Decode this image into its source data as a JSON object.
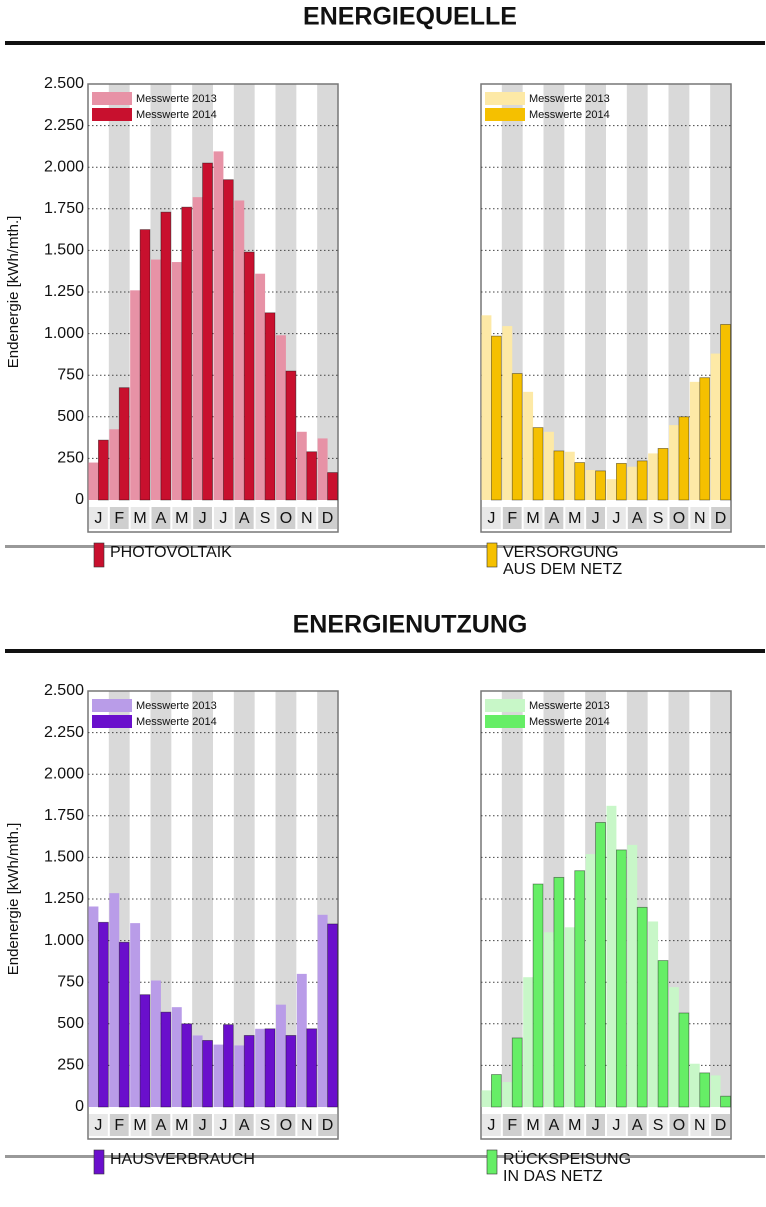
{
  "sections": [
    {
      "title": "ENERGIEQUELLE"
    },
    {
      "title": "ENERGIENUTZUNG"
    }
  ],
  "chart_data": [
    {
      "type": "bar",
      "ylabel": "Endenergie [kWh/mth.]",
      "caption": [
        "PHOTOVOLTAIK"
      ],
      "caption_color": "#c8102e",
      "categories": [
        "J",
        "F",
        "M",
        "A",
        "M",
        "J",
        "J",
        "A",
        "S",
        "O",
        "N",
        "D"
      ],
      "series": [
        {
          "name": "Messwerte 2013",
          "color": "#e792a6",
          "values": [
            225,
            425,
            1260,
            1445,
            1430,
            1820,
            2095,
            1800,
            1360,
            990,
            410,
            370
          ]
        },
        {
          "name": "Messwerte 2014",
          "color": "#c8102e",
          "values": [
            360,
            675,
            1625,
            1730,
            1760,
            2025,
            1925,
            1490,
            1125,
            775,
            290,
            165
          ]
        }
      ],
      "ylim": [
        0,
        2500
      ],
      "show_ytick_labels": true,
      "yticks": [
        0,
        250,
        500,
        750,
        {
          "value": 1000,
          "label": "1.000"
        },
        {
          "value": 1250,
          "label": "1.250"
        },
        {
          "value": 1500,
          "label": "1.500"
        },
        {
          "value": 1750,
          "label": "1.750"
        },
        {
          "value": 2000,
          "label": "2.000"
        },
        {
          "value": 2250,
          "label": "2.250"
        },
        {
          "value": 2500,
          "label": "2.500"
        }
      ],
      "grid": true
    },
    {
      "type": "bar",
      "caption": [
        "VERSORGUNG",
        "AUS DEM NETZ"
      ],
      "caption_color": "#f5c000",
      "categories": [
        "J",
        "F",
        "M",
        "A",
        "M",
        "J",
        "J",
        "A",
        "S",
        "O",
        "N",
        "D"
      ],
      "series": [
        {
          "name": "Messwerte 2013",
          "color": "#fde9a6",
          "values": [
            1110,
            1045,
            650,
            410,
            290,
            180,
            125,
            200,
            280,
            450,
            710,
            880
          ]
        },
        {
          "name": "Messwerte 2014",
          "color": "#f5c000",
          "values": [
            985,
            760,
            435,
            295,
            225,
            175,
            220,
            235,
            310,
            500,
            735,
            1055
          ]
        }
      ],
      "ylim": [
        0,
        2500
      ],
      "show_ytick_labels": false,
      "yticks": [
        0,
        250,
        500,
        750,
        1000,
        1250,
        1500,
        1750,
        2000,
        2250,
        2500
      ],
      "grid": true
    },
    {
      "type": "bar",
      "ylabel": "Endenergie [kWh/mth.]",
      "caption": [
        "HAUSVERBRAUCH"
      ],
      "caption_color": "#6a0fcc",
      "categories": [
        "J",
        "F",
        "M",
        "A",
        "M",
        "J",
        "J",
        "A",
        "S",
        "O",
        "N",
        "D"
      ],
      "series": [
        {
          "name": "Messwerte 2013",
          "color": "#b99ce8",
          "values": [
            1205,
            1285,
            1105,
            760,
            600,
            430,
            375,
            370,
            470,
            615,
            800,
            1155
          ]
        },
        {
          "name": "Messwerte 2014",
          "color": "#6a0fcc",
          "values": [
            1110,
            990,
            675,
            570,
            500,
            400,
            495,
            430,
            470,
            430,
            470,
            1100
          ]
        }
      ],
      "ylim": [
        0,
        2500
      ],
      "show_ytick_labels": true,
      "yticks": [
        0,
        250,
        500,
        750,
        {
          "value": 1000,
          "label": "1.000"
        },
        {
          "value": 1250,
          "label": "1.250"
        },
        {
          "value": 1500,
          "label": "1.500"
        },
        {
          "value": 1750,
          "label": "1.750"
        },
        {
          "value": 2000,
          "label": "2.000"
        },
        {
          "value": 2250,
          "label": "2.250"
        },
        {
          "value": 2500,
          "label": "2.500"
        }
      ],
      "grid": true
    },
    {
      "type": "bar",
      "caption": [
        "RÜCKSPEISUNG",
        "IN DAS NETZ"
      ],
      "caption_color": "#66ee66",
      "categories": [
        "J",
        "F",
        "M",
        "A",
        "M",
        "J",
        "J",
        "A",
        "S",
        "O",
        "N",
        "D"
      ],
      "series": [
        {
          "name": "Messwerte 2013",
          "color": "#c8f7c8",
          "values": [
            100,
            150,
            780,
            1050,
            1080,
            1520,
            1810,
            1575,
            1115,
            720,
            260,
            190
          ]
        },
        {
          "name": "Messwerte 2014",
          "color": "#66ee66",
          "values": [
            195,
            415,
            1340,
            1380,
            1420,
            1710,
            1545,
            1200,
            880,
            565,
            205,
            65
          ]
        }
      ],
      "ylim": [
        0,
        2500
      ],
      "show_ytick_labels": false,
      "yticks": [
        0,
        250,
        500,
        750,
        1000,
        1250,
        1500,
        1750,
        2000,
        2250,
        2500
      ],
      "grid": true
    }
  ]
}
